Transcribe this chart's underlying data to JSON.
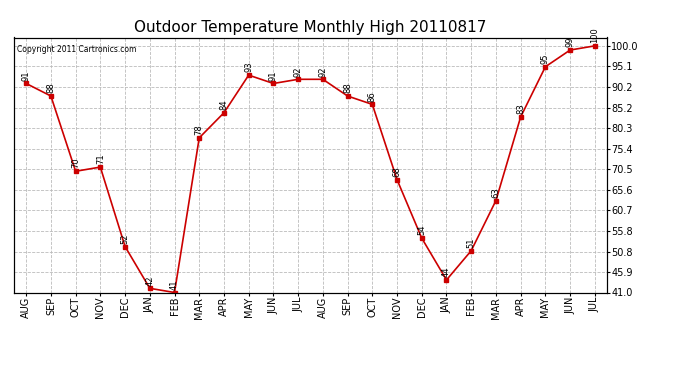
{
  "title": "Outdoor Temperature Monthly High 20110817",
  "copyright": "Copyright 2011 Cartronics.com",
  "months": [
    "AUG",
    "SEP",
    "OCT",
    "NOV",
    "DEC",
    "JAN",
    "FEB",
    "MAR",
    "APR",
    "MAY",
    "JUN",
    "JUL",
    "AUG",
    "SEP",
    "OCT",
    "NOV",
    "DEC",
    "JAN",
    "FEB",
    "MAR",
    "APR",
    "MAY",
    "JUN",
    "JUL"
  ],
  "values": [
    91,
    88,
    70,
    71,
    52,
    42,
    41,
    78,
    84,
    93,
    91,
    92,
    92,
    88,
    86,
    68,
    54,
    44,
    51,
    63,
    83,
    95,
    99,
    100
  ],
  "line_color": "#cc0000",
  "marker": "s",
  "marker_color": "#cc0000",
  "marker_size": 3,
  "ylim": [
    41.0,
    102.0
  ],
  "yticks_right": [
    100.0,
    95.1,
    90.2,
    85.2,
    80.3,
    75.4,
    70.5,
    65.6,
    60.7,
    55.8,
    50.8,
    45.9,
    41.0
  ],
  "ytick_labels_right": [
    "100.0",
    "95.1",
    "90.2",
    "85.2",
    "80.3",
    "75.4",
    "70.5",
    "65.6",
    "60.7",
    "55.8",
    "50.8",
    "45.9",
    "41.0"
  ],
  "grid_color": "#bbbbbb",
  "bg_color": "#ffffff",
  "title_fontsize": 11,
  "tick_fontsize": 7,
  "annot_fontsize": 6
}
